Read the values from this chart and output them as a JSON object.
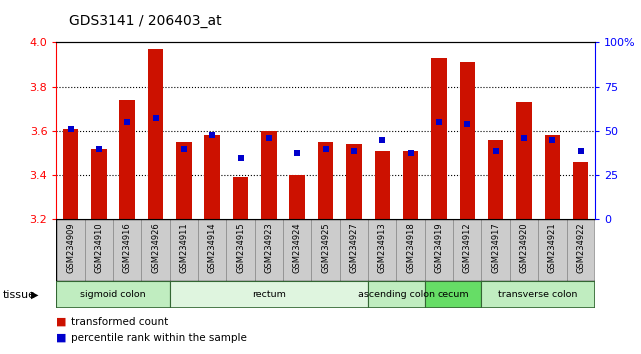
{
  "title": "GDS3141 / 206403_at",
  "samples": [
    "GSM234909",
    "GSM234910",
    "GSM234916",
    "GSM234926",
    "GSM234911",
    "GSM234914",
    "GSM234915",
    "GSM234923",
    "GSM234924",
    "GSM234925",
    "GSM234927",
    "GSM234913",
    "GSM234918",
    "GSM234919",
    "GSM234912",
    "GSM234917",
    "GSM234920",
    "GSM234921",
    "GSM234922"
  ],
  "bar_values": [
    3.61,
    3.52,
    3.74,
    3.97,
    3.55,
    3.58,
    3.39,
    3.6,
    3.4,
    3.55,
    3.54,
    3.51,
    3.51,
    3.93,
    3.91,
    3.56,
    3.73,
    3.58,
    3.46
  ],
  "dot_values": [
    3.61,
    3.52,
    3.64,
    3.66,
    3.52,
    3.58,
    3.48,
    3.57,
    3.5,
    3.52,
    3.51,
    3.56,
    3.5,
    3.64,
    3.63,
    3.51,
    3.57,
    3.56,
    3.51
  ],
  "ylim_min": 3.2,
  "ylim_max": 4.0,
  "yticks": [
    3.2,
    3.4,
    3.6,
    3.8,
    4.0
  ],
  "y2ticks": [
    0,
    25,
    50,
    75,
    100
  ],
  "y2tick_labels": [
    "0",
    "25",
    "50",
    "75",
    "100%"
  ],
  "bar_color": "#cc1100",
  "dot_color": "#0000cc",
  "bar_bottom": 3.2,
  "grid_lines": [
    3.4,
    3.6,
    3.8
  ],
  "tissue_groups": [
    {
      "label": "sigmoid colon",
      "start": 0,
      "end": 4,
      "color": "#c0edc0"
    },
    {
      "label": "rectum",
      "start": 4,
      "end": 11,
      "color": "#dff5df"
    },
    {
      "label": "ascending colon",
      "start": 11,
      "end": 13,
      "color": "#c0edc0"
    },
    {
      "label": "cecum",
      "start": 13,
      "end": 15,
      "color": "#66dd66"
    },
    {
      "label": "transverse colon",
      "start": 15,
      "end": 19,
      "color": "#c0edc0"
    }
  ],
  "legend_tc_label": "transformed count",
  "legend_pr_label": "percentile rank within the sample",
  "legend_tc_color": "#cc1100",
  "legend_pr_color": "#0000cc",
  "tissue_label": "tissue",
  "xticklabel_bg": "#cccccc",
  "xticklabel_border": "#888888"
}
